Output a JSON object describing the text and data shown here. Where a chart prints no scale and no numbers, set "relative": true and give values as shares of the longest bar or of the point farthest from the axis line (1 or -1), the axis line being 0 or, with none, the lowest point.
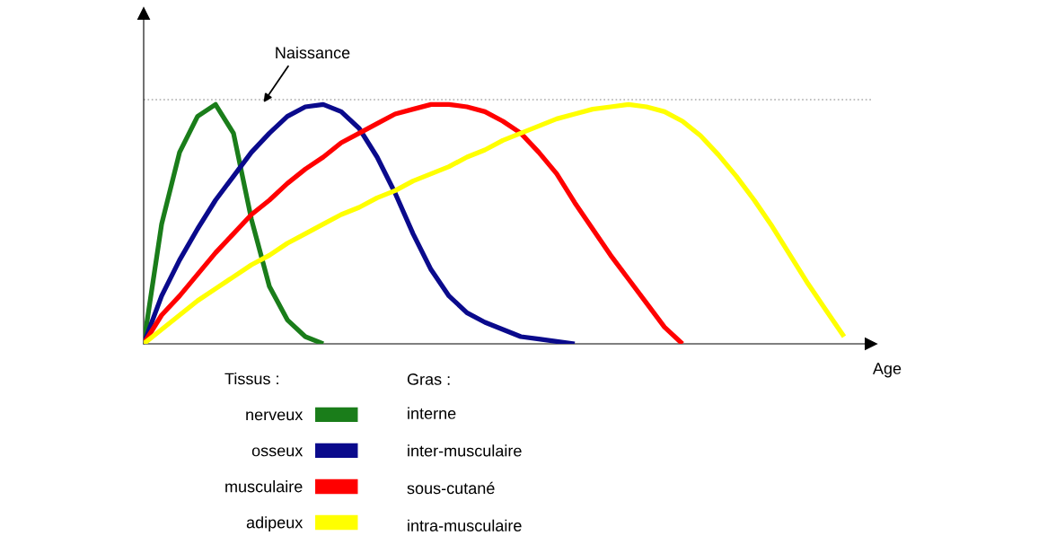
{
  "chart_data": {
    "type": "line",
    "relative": true,
    "xlabel": "Age",
    "legend_title": "Tissus :",
    "categories": [
      null,
      null,
      null,
      null,
      null,
      null,
      null,
      null,
      null,
      null,
      null,
      null,
      null,
      null,
      null,
      null,
      null,
      null,
      null,
      null,
      null,
      null,
      null,
      null,
      null,
      null,
      null,
      null,
      null,
      null,
      null,
      null,
      null,
      null,
      null,
      null,
      null,
      null,
      null,
      null,
      null
    ],
    "series": [
      {
        "name": "nerveux",
        "color": "#1a7d1a",
        "values": [
          0,
          0.5,
          0.8,
          0.95,
          1,
          0.88,
          0.52,
          0.24,
          0.1,
          0.03,
          0,
          null,
          null,
          null,
          null,
          null,
          null,
          null,
          null,
          null,
          null,
          null,
          null,
          null,
          null,
          null,
          null,
          null,
          null,
          null,
          null,
          null,
          null,
          null,
          null,
          null,
          null,
          null,
          null,
          null,
          null
        ]
      },
      {
        "name": "osseux",
        "color": "#0a0a8c",
        "values": [
          0,
          0.2,
          0.35,
          0.48,
          0.6,
          0.7,
          0.8,
          0.88,
          0.95,
          0.99,
          1,
          0.97,
          0.9,
          0.78,
          0.63,
          0.46,
          0.31,
          0.2,
          0.13,
          0.09,
          0.06,
          0.03,
          0.02,
          0.01,
          0,
          null,
          null,
          null,
          null,
          null,
          null,
          null,
          null,
          null,
          null,
          null,
          null,
          null,
          null,
          null,
          null
        ]
      },
      {
        "name": "musculaire",
        "color": "#ff0000",
        "values": [
          0,
          0.12,
          0.2,
          0.29,
          0.38,
          0.46,
          0.54,
          0.6,
          0.67,
          0.73,
          0.78,
          0.84,
          0.88,
          0.92,
          0.96,
          0.98,
          1,
          1,
          0.99,
          0.97,
          0.93,
          0.88,
          0.8,
          0.71,
          0.59,
          0.48,
          0.37,
          0.27,
          0.17,
          0.07,
          0,
          null,
          null,
          null,
          null,
          null,
          null,
          null,
          null,
          null,
          null
        ]
      },
      {
        "name": "adipeux",
        "color": "#ffff00",
        "values": [
          0,
          0.06,
          0.12,
          0.18,
          0.23,
          0.28,
          0.33,
          0.37,
          0.42,
          0.46,
          0.5,
          0.54,
          0.57,
          0.61,
          0.64,
          0.68,
          0.71,
          0.74,
          0.78,
          0.81,
          0.85,
          0.88,
          0.91,
          0.94,
          0.96,
          0.98,
          0.99,
          1,
          0.99,
          0.97,
          0.93,
          0.87,
          0.79,
          0.7,
          0.6,
          0.49,
          0.37,
          0.25,
          0.14,
          0.03,
          null
        ]
      }
    ],
    "ref_lines": [
      {
        "axis": "y",
        "value": 1.02,
        "color": "#aaaaaa",
        "line_style": "dotted"
      }
    ],
    "annotations": [
      "Naissance",
      "Gras :",
      "interne",
      "inter-musculaire",
      "sous-cutané",
      "intra-musculaire"
    ],
    "line_style": "solid",
    "marker": "none",
    "grid": false,
    "legend": "bottom left"
  }
}
